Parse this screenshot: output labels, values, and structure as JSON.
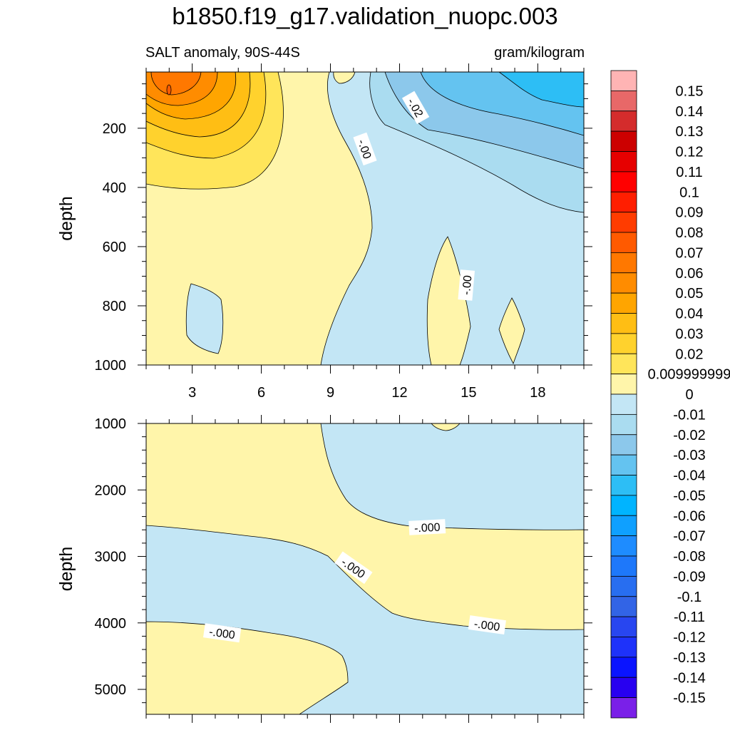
{
  "title": "b1850.f19_g17.validation_nuopc.003",
  "subtitle_left": "SALT anomaly, 90S-44S",
  "subtitle_right": "gram/kilogram",
  "chart_data": [
    {
      "type": "contour",
      "panel": "upper",
      "ylabel": "depth",
      "xlim": [
        1,
        20
      ],
      "ylim": [
        1000,
        10
      ],
      "y_reversed": true,
      "xticks": [
        3,
        6,
        9,
        12,
        15,
        18
      ],
      "yticks": [
        200,
        400,
        600,
        800,
        1000
      ],
      "contour_labels": [
        {
          "text": "-.02",
          "x": 12.7,
          "y": 130,
          "rotation": 60
        },
        {
          "text": "-.00",
          "x": 10.5,
          "y": 270,
          "rotation": 70
        },
        {
          "text": "-.00",
          "x": 14.9,
          "y": 730,
          "rotation": -85
        }
      ]
    },
    {
      "type": "contour",
      "panel": "lower",
      "ylabel": "depth",
      "xlim": [
        1,
        20
      ],
      "ylim": [
        5375,
        1000
      ],
      "y_reversed": true,
      "yticks": [
        1000,
        2000,
        3000,
        4000,
        5000
      ],
      "contour_labels": [
        {
          "text": "-.000",
          "x": 13.2,
          "y": 2560,
          "rotation": -3
        },
        {
          "text": "-.000",
          "x": 10.0,
          "y": 3170,
          "rotation": 35
        },
        {
          "text": "-.000",
          "x": 4.3,
          "y": 4150,
          "rotation": 8
        },
        {
          "text": "-.000",
          "x": 15.8,
          "y": 4030,
          "rotation": 8
        }
      ]
    }
  ],
  "colorbar": {
    "levels": [
      "0.15",
      "0.14",
      "0.13",
      "0.12",
      "0.11",
      "0.1",
      "0.09",
      "0.08",
      "0.07",
      "0.06",
      "0.05",
      "0.04",
      "0.03",
      "0.02",
      "0.009999999",
      "0",
      "-0.01",
      "-0.02",
      "-0.03",
      "-0.04",
      "-0.05",
      "-0.06",
      "-0.07",
      "-0.08",
      "-0.09",
      "-0.1",
      "-0.11",
      "-0.12",
      "-0.13",
      "-0.14",
      "-0.15"
    ],
    "colors": [
      "#FFB4B4",
      "#E86868",
      "#D42C2C",
      "#CC0000",
      "#E60000",
      "#FF0000",
      "#FF1E00",
      "#FF3C00",
      "#FF5A00",
      "#FF7800",
      "#FF8C00",
      "#FFA500",
      "#FFBE14",
      "#FFD22D",
      "#FFE55A",
      "#FFF5AA",
      "#C3E6F5",
      "#AADCF0",
      "#8CC8EB",
      "#64C3F0",
      "#2DBEF5",
      "#00B4FF",
      "#0FA0FF",
      "#1E8CFF",
      "#1E78FA",
      "#286EF0",
      "#3264E6",
      "#2846F0",
      "#1E32FA",
      "#0A14FF",
      "#2800F0",
      "#7A20E8"
    ]
  }
}
